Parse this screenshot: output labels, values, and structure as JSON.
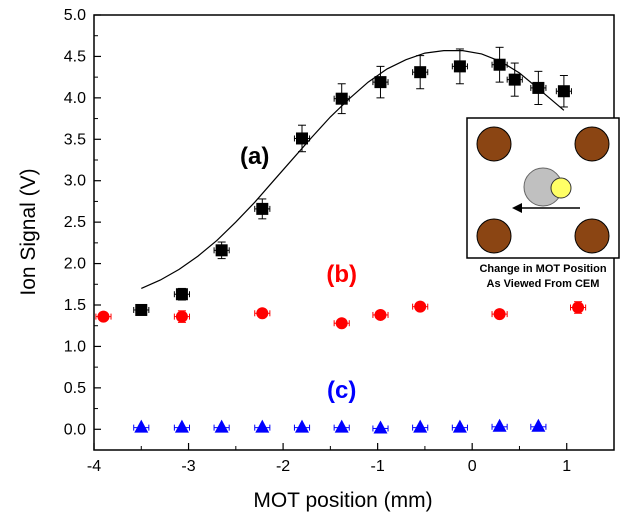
{
  "chart_data": {
    "type": "scatter",
    "xlabel": "MOT position (mm)",
    "ylabel": "Ion Signal (V)",
    "xlim": [
      -4,
      1.5
    ],
    "ylim": [
      -0.25,
      5.0
    ],
    "x_ticks": [
      "-4",
      "-3",
      "-2",
      "-1",
      "0",
      "1"
    ],
    "y_ticks": [
      "0.0",
      "0.5",
      "1.0",
      "1.5",
      "2.0",
      "2.5",
      "3.0",
      "3.5",
      "4.0",
      "4.5",
      "5.0"
    ],
    "x_tick_values": [
      -4,
      -3,
      -2,
      -1,
      0,
      1
    ],
    "y_tick_values": [
      0.0,
      0.5,
      1.0,
      1.5,
      2.0,
      2.5,
      3.0,
      3.5,
      4.0,
      4.5,
      5.0
    ],
    "series": [
      {
        "name": "(a)",
        "marker": "square",
        "color": "#000000",
        "xerr": 0.08,
        "points": [
          {
            "x": -3.5,
            "y": 1.44,
            "yerr": 0.05
          },
          {
            "x": -3.07,
            "y": 1.63,
            "yerr": 0.07
          },
          {
            "x": -2.65,
            "y": 2.16,
            "yerr": 0.1
          },
          {
            "x": -2.22,
            "y": 2.66,
            "yerr": 0.12
          },
          {
            "x": -1.8,
            "y": 3.51,
            "yerr": 0.16
          },
          {
            "x": -1.38,
            "y": 3.99,
            "yerr": 0.18
          },
          {
            "x": -0.97,
            "y": 4.19,
            "yerr": 0.19
          },
          {
            "x": -0.55,
            "y": 4.31,
            "yerr": 0.2
          },
          {
            "x": -0.13,
            "y": 4.38,
            "yerr": 0.21
          },
          {
            "x": 0.29,
            "y": 4.4,
            "yerr": 0.21
          },
          {
            "x": 0.45,
            "y": 4.22,
            "yerr": 0.2
          },
          {
            "x": 0.7,
            "y": 4.12,
            "yerr": 0.2
          },
          {
            "x": 0.97,
            "y": 4.08,
            "yerr": 0.19
          }
        ]
      },
      {
        "name": "(b)",
        "marker": "circle",
        "color": "#ff0000",
        "xerr": 0.08,
        "points": [
          {
            "x": -3.9,
            "y": 1.36,
            "yerr": 0.04
          },
          {
            "x": -3.07,
            "y": 1.36,
            "yerr": 0.07
          },
          {
            "x": -2.22,
            "y": 1.4,
            "yerr": 0.04
          },
          {
            "x": -1.38,
            "y": 1.28,
            "yerr": 0.04
          },
          {
            "x": -0.97,
            "y": 1.38,
            "yerr": 0.04
          },
          {
            "x": -0.55,
            "y": 1.48,
            "yerr": 0.04
          },
          {
            "x": 0.29,
            "y": 1.39,
            "yerr": 0.04
          },
          {
            "x": 1.12,
            "y": 1.47,
            "yerr": 0.07
          }
        ]
      },
      {
        "name": "(c)",
        "marker": "triangle",
        "color": "#0000ff",
        "xerr": 0.08,
        "points": [
          {
            "x": -3.5,
            "y": 0.02
          },
          {
            "x": -3.07,
            "y": 0.02
          },
          {
            "x": -2.65,
            "y": 0.02
          },
          {
            "x": -2.22,
            "y": 0.02
          },
          {
            "x": -1.8,
            "y": 0.02
          },
          {
            "x": -1.38,
            "y": 0.02
          },
          {
            "x": -0.97,
            "y": 0.01
          },
          {
            "x": -0.55,
            "y": 0.02
          },
          {
            "x": -0.13,
            "y": 0.02
          },
          {
            "x": 0.29,
            "y": 0.03
          },
          {
            "x": 0.7,
            "y": 0.03
          }
        ]
      }
    ],
    "fit_curve": {
      "color": "#000000",
      "points": [
        [
          -3.5,
          1.7
        ],
        [
          -3.3,
          1.8
        ],
        [
          -3.1,
          1.93
        ],
        [
          -2.9,
          2.09
        ],
        [
          -2.7,
          2.28
        ],
        [
          -2.5,
          2.5
        ],
        [
          -2.3,
          2.74
        ],
        [
          -2.1,
          3.0
        ],
        [
          -1.9,
          3.26
        ],
        [
          -1.7,
          3.52
        ],
        [
          -1.5,
          3.77
        ],
        [
          -1.3,
          3.99
        ],
        [
          -1.1,
          4.19
        ],
        [
          -0.9,
          4.35
        ],
        [
          -0.7,
          4.46
        ],
        [
          -0.5,
          4.54
        ],
        [
          -0.3,
          4.57
        ],
        [
          -0.1,
          4.57
        ],
        [
          0.1,
          4.53
        ],
        [
          0.3,
          4.44
        ],
        [
          0.5,
          4.3
        ],
        [
          0.7,
          4.11
        ],
        [
          0.97,
          3.85
        ]
      ]
    },
    "series_labels": [
      {
        "text": "(a)",
        "x": -2.3,
        "y": 3.2,
        "color": "#000000"
      },
      {
        "text": "(b)",
        "x": -1.38,
        "y": 1.78,
        "color": "#ff0000"
      },
      {
        "text": "(c)",
        "x": -1.38,
        "y": 0.38,
        "color": "#0000ff"
      }
    ],
    "inset": {
      "caption_line1": "Change in MOT Position",
      "caption_line2": "As Viewed From CEM",
      "electrode_color": "#8b4513",
      "mot_color": "#c0c0c0",
      "spot_color": "#ffff66"
    }
  }
}
